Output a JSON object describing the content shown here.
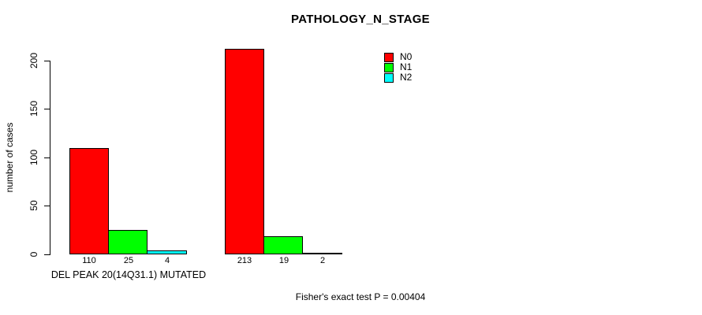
{
  "chart_data": {
    "type": "bar",
    "title": "PATHOLOGY_N_STAGE",
    "ylabel": "number of cases",
    "xlabel": "",
    "ylim": [
      0,
      200
    ],
    "yticks": [
      0,
      50,
      100,
      150,
      200
    ],
    "grid": false,
    "legend_position": "top-right",
    "background_color": "#ffffff",
    "groups": [
      "DEL PEAK 20(14Q31.1) MUTATED",
      ""
    ],
    "series": [
      {
        "name": "N0",
        "color": "#ff0000",
        "values": [
          110,
          213
        ]
      },
      {
        "name": "N1",
        "color": "#00ff00",
        "values": [
          25,
          19
        ]
      },
      {
        "name": "N2",
        "color": "#00ffff",
        "values": [
          4,
          2
        ]
      }
    ],
    "annotation": "Fisher's exact test P = 0.00404"
  }
}
